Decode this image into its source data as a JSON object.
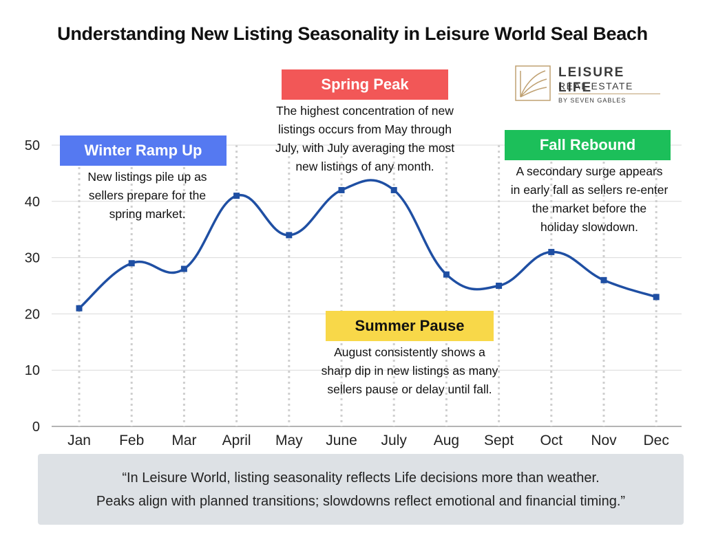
{
  "chart_data": {
    "type": "line",
    "title": "Understanding New Listing Seasonality in Leisure World Seal Beach",
    "categories": [
      "Jan",
      "Feb",
      "Mar",
      "April",
      "May",
      "June",
      "July",
      "Aug",
      "Sept",
      "Oct",
      "Nov",
      "Dec"
    ],
    "values": [
      21,
      29,
      28,
      41,
      34,
      42,
      42,
      27,
      25,
      31,
      26,
      23
    ],
    "yticks": [
      0,
      10,
      20,
      30,
      40,
      50
    ],
    "ylim": [
      0,
      50
    ],
    "grid": true,
    "line_color": "#1f4fa3",
    "annotations": [
      {
        "label": "Winter Ramp Up",
        "color": "#5579f1",
        "lines": [
          "New listings pile up as",
          "sellers prepare for the",
          "spring market."
        ]
      },
      {
        "label": "Spring Peak",
        "color": "#f25757",
        "lines": [
          "The highest concentration of new",
          "listings occurs from May through",
          "July, with July averaging the most",
          "new listings of any month."
        ]
      },
      {
        "label": "Fall Rebound",
        "color": "#1cbf5a",
        "lines": [
          "A secondary surge appears",
          "in early fall as sellers re-enter",
          "the market before the",
          "holiday slowdown."
        ]
      },
      {
        "label": "Summer Pause",
        "color": "#f8d849",
        "lines": [
          "August consistently shows a",
          "sharp dip in new listings as many",
          "sellers pause or delay until fall."
        ]
      }
    ]
  },
  "logo": {
    "name": "LEISURE LIFE",
    "sub": "REAL ESTATE",
    "tag": "BY SEVEN GABLES",
    "color": "#bfa071"
  },
  "quote": {
    "line1": "“In Leisure World, listing seasonality reflects Life decisions more than weather.",
    "line2": "Peaks align with planned transitions; slowdowns reflect emotional and financial timing.”"
  }
}
